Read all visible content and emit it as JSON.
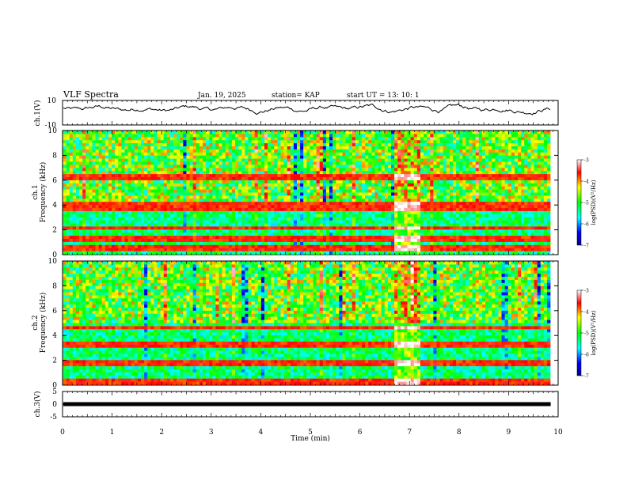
{
  "chart_data": {
    "type": "heatmap",
    "title": "VLF Spectra",
    "header": {
      "date": "Jan. 19, 2025",
      "station": "station= KAP",
      "start_ut": "start UT =   13: 10: 1"
    },
    "xlabel": "Time (min)",
    "xlim": [
      0,
      10
    ],
    "x_ticks": [
      "0",
      "1",
      "2",
      "3",
      "4",
      "5",
      "6",
      "7",
      "8",
      "9",
      "10"
    ],
    "panels": [
      {
        "id": "ch1-waveform",
        "type": "line",
        "ylabel": "ch.1(V)",
        "ylim": [
          -10,
          10
        ],
        "y_ticks": [
          "10",
          "-10"
        ],
        "mean": 3,
        "amplitude": 5
      },
      {
        "id": "ch1-spectrogram",
        "type": "heatmap",
        "ylabel": "ch.1\nFrequency (kHz)",
        "ylim": [
          0,
          10
        ],
        "y_ticks": [
          "0",
          "2",
          "4",
          "6",
          "8",
          "10"
        ],
        "colorbar": {
          "label": "log(PSD)(V²/Hz)",
          "range": [
            -7,
            -3
          ],
          "ticks": [
            "-3",
            "-4",
            "-5",
            "-6",
            "-7"
          ]
        },
        "strong_lines_khz": [
          0.5,
          1.2,
          2.1,
          3.7,
          4.0,
          6.3
        ],
        "burst_interval_min": [
          6.65,
          7.2
        ]
      },
      {
        "id": "ch2-spectrogram",
        "type": "heatmap",
        "ylabel": "ch.2\nFrequency (kHz)",
        "ylim": [
          0,
          10
        ],
        "y_ticks": [
          "0",
          "2",
          "4",
          "6",
          "8",
          "10"
        ],
        "colorbar": {
          "label": "log(PSD)(V²/Hz)",
          "range": [
            -7,
            -3
          ],
          "ticks": [
            "-3",
            "-4",
            "-5",
            "-6",
            "-7"
          ]
        },
        "strong_lines_khz": [
          0.3,
          1.8,
          3.2,
          4.6
        ],
        "burst_interval_min": [
          6.65,
          7.2
        ]
      },
      {
        "id": "ch3-waveform",
        "type": "line",
        "ylabel": "ch.3(V)",
        "ylim": [
          -5,
          5
        ],
        "y_ticks": [
          "5",
          "0",
          "-5"
        ],
        "level": 0
      }
    ],
    "data_end_min": 9.85
  },
  "colors": {
    "axis": "#000000",
    "trace": "#000000",
    "background": "#ffffff"
  }
}
